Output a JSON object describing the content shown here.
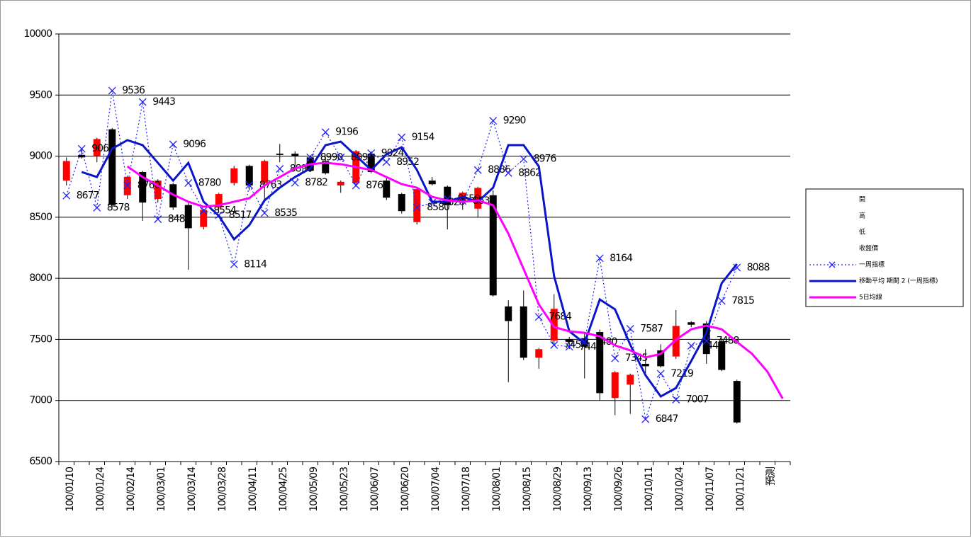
{
  "chart_data": {
    "type": "candlestick",
    "categories": [
      "100/01/10",
      null,
      "100/01/24",
      null,
      "100/02/14",
      null,
      "100/03/01",
      null,
      "100/03/14",
      null,
      "100/03/28",
      null,
      "100/04/11",
      null,
      "100/04/25",
      null,
      "100/05/09",
      null,
      "100/05/23",
      null,
      "100/06/07",
      null,
      "100/06/20",
      null,
      "100/07/04",
      null,
      "100/07/18",
      null,
      "100/08/01",
      null,
      "100/08/15",
      null,
      "100/08/29",
      null,
      "100/09/13",
      null,
      "100/09/26",
      null,
      "100/10/11",
      null,
      "100/10/24",
      null,
      "100/11/07",
      null,
      "100/11/21",
      null,
      "預測",
      null
    ],
    "ylim": [
      6500,
      10000
    ],
    "yticks": [
      6500,
      7000,
      7500,
      8000,
      8500,
      9000,
      9500,
      10000
    ],
    "grid": true,
    "up_color": "#ff0000",
    "down_color": "#000000",
    "legend": "right",
    "series": [
      {
        "name": "開",
        "values": [
          8800,
          9010,
          9000,
          9220,
          8680,
          8870,
          8650,
          8770,
          8600,
          8420,
          8580,
          8780,
          8920,
          8780,
          9020,
          9020,
          8990,
          8960,
          8760,
          8780,
          9020,
          8800,
          8690,
          8460,
          8800,
          8750,
          8620,
          8570,
          8680,
          7770,
          7770,
          7350,
          7490,
          7500,
          7510,
          7560,
          7020,
          7130,
          7300,
          7410,
          7360,
          7640,
          7630,
          7480,
          7160,
          null,
          null,
          null
        ]
      },
      {
        "name": "高",
        "values": [
          8990,
          9060,
          9150,
          9230,
          8840,
          8880,
          8810,
          8780,
          8620,
          8570,
          8700,
          8920,
          8930,
          8970,
          9100,
          9040,
          9010,
          8990,
          8800,
          9050,
          9040,
          8830,
          8700,
          8740,
          8830,
          8760,
          8710,
          8750,
          8720,
          7820,
          7900,
          7430,
          7870,
          7520,
          7560,
          7580,
          7240,
          7220,
          7420,
          7460,
          7740,
          7650,
          7650,
          7510,
          7170,
          null,
          null,
          null
        ]
      },
      {
        "name": "低",
        "values": [
          8760,
          8980,
          8950,
          8580,
          8650,
          8470,
          8620,
          8560,
          8070,
          8400,
          8560,
          8760,
          8720,
          8620,
          8950,
          8900,
          8870,
          8850,
          8700,
          8760,
          8860,
          8640,
          8530,
          8440,
          8760,
          8400,
          8560,
          8500,
          7850,
          7150,
          7330,
          7260,
          7460,
          7420,
          7180,
          7000,
          6880,
          6890,
          7200,
          7270,
          7340,
          7600,
          7300,
          7240,
          6810,
          null,
          null,
          null
        ]
      },
      {
        "name": "收盤價",
        "values": [
          8960,
          8990,
          9140,
          8600,
          8830,
          8620,
          8800,
          8580,
          8410,
          8560,
          8690,
          8900,
          8760,
          8960,
          9010,
          9000,
          8880,
          8860,
          8790,
          9040,
          8870,
          8660,
          8550,
          8730,
          8770,
          8600,
          8700,
          8740,
          7860,
          7650,
          7350,
          7420,
          7750,
          7480,
          7440,
          7060,
          7230,
          7210,
          7280,
          7280,
          7610,
          7620,
          7380,
          7250,
          6820,
          null,
          null,
          null
        ]
      },
      {
        "name": "一周指標",
        "color": "#2020ff",
        "line_style": "dotted",
        "marker": "x",
        "show_labels": true,
        "values": [
          8677,
          9060,
          8578,
          9536,
          8760,
          9443,
          8484,
          9096,
          8780,
          8554,
          8517,
          8114,
          8763,
          8535,
          8896,
          8782,
          8990,
          9196,
          8990,
          8760,
          9024,
          8952,
          9154,
          8580,
          8620,
          8650,
          8633,
          8886,
          9290,
          8862,
          8976,
          7684,
          7454,
          7440,
          7480,
          8164,
          7345,
          7587,
          6847,
          7219,
          7007,
          7448,
          7488,
          7815,
          8088,
          null,
          null,
          null
        ]
      },
      {
        "name": "移動平均 期間 2 (一周指標)",
        "color": "#0a14c8",
        "line_style": "solid",
        "values": [
          null,
          8870,
          8829,
          9061,
          9131,
          9090,
          8945,
          8800,
          8945,
          8627,
          8511,
          8319,
          8435,
          8638,
          8742,
          8829,
          8899,
          9090,
          9119,
          9003,
          8887,
          9015,
          9073,
          8887,
          8627,
          8627,
          8667,
          8627,
          8742,
          9090,
          9090,
          8916,
          8018,
          7566,
          7468,
          7827,
          7746,
          7456,
          7207,
          7033,
          7102,
          7323,
          7554,
          7960,
          8117,
          null,
          null,
          null
        ]
      },
      {
        "name": "5日均線",
        "color": "#ff00ff",
        "line_style": "solid",
        "values": [
          null,
          null,
          null,
          null,
          8916,
          8829,
          8760,
          8685,
          8627,
          8586,
          8598,
          8627,
          8656,
          8760,
          8829,
          8899,
          8934,
          8945,
          8934,
          8911,
          8887,
          8829,
          8771,
          8742,
          8667,
          8638,
          8627,
          8638,
          8598,
          8366,
          8076,
          7787,
          7601,
          7566,
          7554,
          7525,
          7450,
          7410,
          7352,
          7381,
          7497,
          7583,
          7612,
          7583,
          7479,
          7381,
          7236,
          7016
        ]
      }
    ]
  }
}
